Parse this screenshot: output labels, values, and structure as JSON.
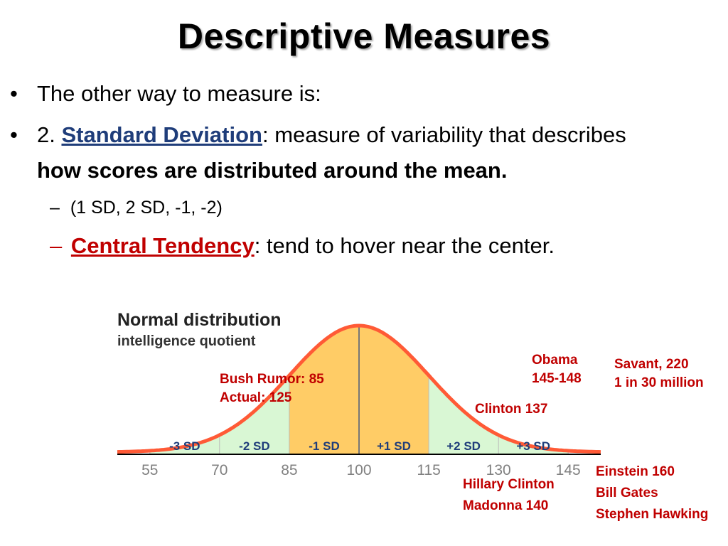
{
  "slide": {
    "title": "Descriptive Measures",
    "bullet1": "The other way to measure is:",
    "bullet2_prefix": "2. ",
    "bullet2_term": "Standard Deviation",
    "bullet2_rest": ": measure of variability that describes",
    "bullet2_bold": "how scores are distributed around the mean.",
    "sub1": "(1 SD, 2 SD, -1, -2)",
    "sub2_term": "Central Tendency",
    "sub2_rest": ": tend to hover near the center.",
    "bullet_glyph": "•",
    "dash_glyph": "–"
  },
  "annotations": {
    "bush": [
      "Bush Rumor: 85",
      "Actual: 125"
    ],
    "obama": [
      "Obama",
      "145-148"
    ],
    "savant": [
      "Savant, 220",
      "1 in 30 million"
    ],
    "clinton": "Clinton 137",
    "hillary": [
      "Hillary Clinton",
      "Madonna 140"
    ],
    "einstein": [
      "Einstein 160",
      "Bill Gates",
      "Stephen Hawking"
    ]
  },
  "chart_data": {
    "type": "area",
    "title": "Normal distribution",
    "subtitle": "intelligence quotient",
    "mean": 100,
    "sd": 15,
    "xlim": [
      48,
      152
    ],
    "x_ticks": [
      55,
      70,
      85,
      100,
      115,
      130,
      145
    ],
    "regions": [
      {
        "label": "-3 SD",
        "from": 55,
        "to": 70,
        "color": "#d9f7d4"
      },
      {
        "label": "-2 SD",
        "from": 70,
        "to": 85,
        "color": "#d9f7d4"
      },
      {
        "label": "-1 SD",
        "from": 85,
        "to": 100,
        "color": "#ffcc66"
      },
      {
        "label": "+1 SD",
        "from": 100,
        "to": 115,
        "color": "#ffcc66"
      },
      {
        "label": "+2 SD",
        "from": 115,
        "to": 130,
        "color": "#d9f7d4"
      },
      {
        "label": "+3 SD",
        "from": 130,
        "to": 145,
        "color": "#d9f7d4"
      }
    ],
    "curve_color": "#ff5a36",
    "label_color": "#1f3d7a",
    "tick_color": "#808080"
  }
}
